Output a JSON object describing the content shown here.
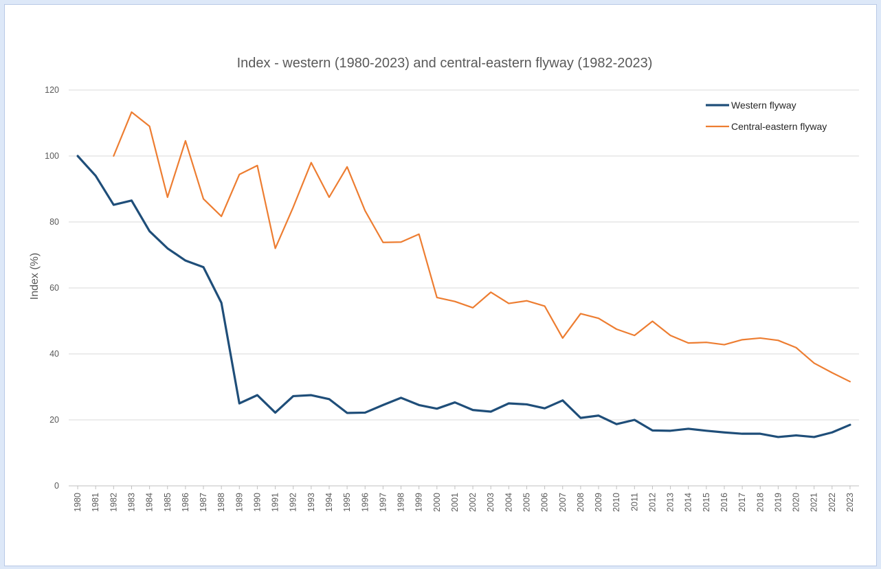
{
  "chart_data": {
    "type": "line",
    "title": "Index - western (1980-2023) and central-eastern flyway (1982-2023)",
    "xlabel": "",
    "ylabel": "Index (%)",
    "ylim": [
      0,
      120
    ],
    "yticks": [
      0,
      20,
      40,
      60,
      80,
      100,
      120
    ],
    "grid": true,
    "legend_position": "top-right",
    "x": [
      "1980",
      "1981",
      "1982",
      "1983",
      "1984",
      "1985",
      "1986",
      "1987",
      "1988",
      "1989",
      "1990",
      "1991",
      "1992",
      "1993",
      "1994",
      "1995",
      "1996",
      "1997",
      "1998",
      "1999",
      "2000",
      "2001",
      "2002",
      "2003",
      "2004",
      "2005",
      "2006",
      "2007",
      "2008",
      "2009",
      "2010",
      "2011",
      "2012",
      "2013",
      "2014",
      "2015",
      "2016",
      "2017",
      "2018",
      "2019",
      "2020",
      "2021",
      "2022",
      "2023"
    ],
    "series": [
      {
        "name": "Western flyway",
        "color": "#1f4e79",
        "values": [
          100,
          94,
          85.2,
          86.5,
          77.2,
          72,
          68.3,
          66.3,
          55.5,
          25,
          27.5,
          22.2,
          27.2,
          27.5,
          26.3,
          22.1,
          22.2,
          24.5,
          26.7,
          24.5,
          23.4,
          25.3,
          23,
          22.5,
          25,
          24.7,
          23.5,
          25.9,
          20.6,
          21.3,
          18.7,
          20,
          16.8,
          16.7,
          17.3,
          16.7,
          16.2,
          15.8,
          15.8,
          14.8,
          15.3,
          14.8,
          16.2,
          18.5
        ]
      },
      {
        "name": "Central-eastern flyway",
        "color": "#ed7d31",
        "values": [
          null,
          null,
          100,
          113.3,
          109,
          87.5,
          104.6,
          87,
          81.7,
          94.4,
          97.1,
          72,
          84.5,
          98,
          87.5,
          96.7,
          83.4,
          73.8,
          73.9,
          76.3,
          57.1,
          55.9,
          54,
          58.7,
          55.3,
          56.1,
          54.5,
          44.8,
          52.2,
          50.8,
          47.5,
          45.6,
          49.9,
          45.6,
          43.3,
          43.5,
          42.8,
          44.3,
          44.8,
          44.1,
          41.9,
          37.2,
          34.3,
          31.6
        ]
      }
    ]
  }
}
